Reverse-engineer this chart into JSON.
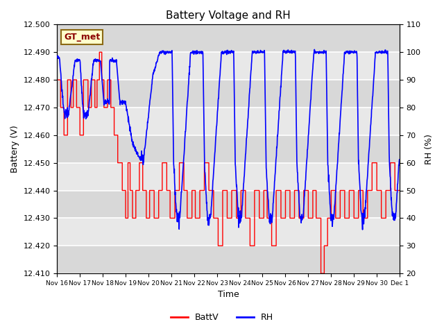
{
  "title": "Battery Voltage and RH",
  "xlabel": "Time",
  "ylabel_left": "Battery (V)",
  "ylabel_right": "RH (%)",
  "annotation": "GT_met",
  "ylim_left": [
    12.41,
    12.5
  ],
  "ylim_right": [
    20,
    110
  ],
  "yticks_left": [
    12.41,
    12.42,
    12.43,
    12.44,
    12.45,
    12.46,
    12.47,
    12.48,
    12.49,
    12.5
  ],
  "yticks_right": [
    20,
    30,
    40,
    50,
    60,
    70,
    80,
    90,
    100,
    110
  ],
  "xtick_labels": [
    "Nov 16",
    "Nov 17",
    "Nov 18",
    "Nov 19",
    "Nov 20",
    "Nov 21",
    "Nov 22",
    "Nov 23",
    "Nov 24",
    "Nov 25",
    "Nov 26",
    "Nov 27",
    "Nov 28",
    "Nov 29",
    "Nov 30",
    "Dec 1"
  ],
  "plot_bg_bands": [
    "#f0f0f0",
    "#e0e0e0"
  ],
  "grid_color": "white",
  "batt_color": "red",
  "rh_color": "blue",
  "legend_batt": "BattV",
  "legend_rh": "RH",
  "annotation_bg": "#ffffcc",
  "annotation_border": "#8b6914",
  "annotation_text_color": "#8b0000"
}
